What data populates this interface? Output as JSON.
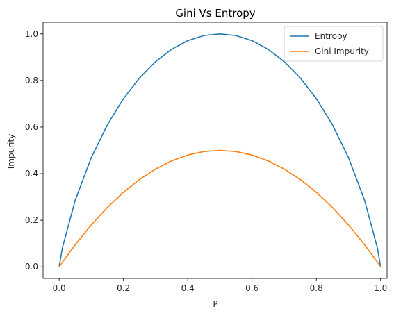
{
  "chart_data": {
    "type": "line",
    "title": "Gini Vs Entropy",
    "xlabel": "P",
    "ylabel": "Impurity",
    "xlim": [
      -0.05,
      1.02
    ],
    "ylim": [
      -0.05,
      1.05
    ],
    "xticks": [
      0.0,
      0.2,
      0.4,
      0.6,
      0.8,
      1.0
    ],
    "yticks": [
      0.0,
      0.2,
      0.4,
      0.6,
      0.8,
      1.0
    ],
    "xtick_labels": [
      "0.0",
      "0.2",
      "0.4",
      "0.6",
      "0.8",
      "1.0"
    ],
    "ytick_labels": [
      "0.0",
      "0.2",
      "0.4",
      "0.6",
      "0.8",
      "1.0"
    ],
    "grid": false,
    "legend_position": "top-right",
    "x": [
      0.0,
      0.01,
      0.05,
      0.1,
      0.15,
      0.2,
      0.25,
      0.3,
      0.35,
      0.4,
      0.45,
      0.5,
      0.55,
      0.6,
      0.65,
      0.7,
      0.75,
      0.8,
      0.85,
      0.9,
      0.95,
      0.99,
      1.0
    ],
    "series": [
      {
        "name": "Entropy",
        "color": "#1f77b4",
        "values": [
          0.0,
          0.081,
          0.286,
          0.469,
          0.61,
          0.722,
          0.811,
          0.881,
          0.934,
          0.971,
          0.993,
          1.0,
          0.993,
          0.971,
          0.934,
          0.881,
          0.811,
          0.722,
          0.61,
          0.469,
          0.286,
          0.081,
          0.0
        ]
      },
      {
        "name": "Gini Impurity",
        "color": "#ff7f0e",
        "values": [
          0.0,
          0.0198,
          0.095,
          0.18,
          0.255,
          0.32,
          0.375,
          0.42,
          0.455,
          0.48,
          0.495,
          0.5,
          0.495,
          0.48,
          0.455,
          0.42,
          0.375,
          0.32,
          0.255,
          0.18,
          0.095,
          0.0198,
          0.0
        ]
      }
    ]
  }
}
